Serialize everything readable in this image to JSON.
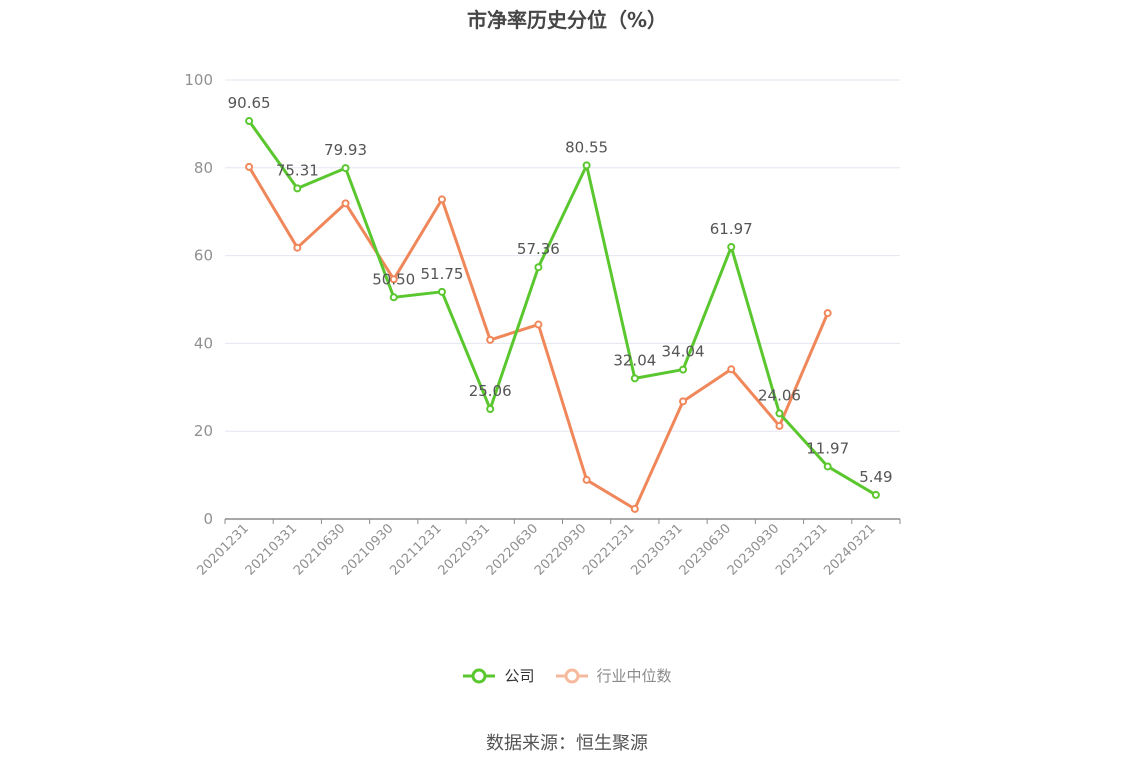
{
  "title": "市净率历史分位（%）",
  "source": "数据来源：恒生聚源",
  "chart_data": {
    "type": "line",
    "title": "市净率历史分位（%）",
    "categories": [
      "20201231",
      "20210331",
      "20210630",
      "20210930",
      "20211231",
      "20220331",
      "20220630",
      "20220930",
      "20221231",
      "20230331",
      "20230630",
      "20230930",
      "20231231",
      "20240321"
    ],
    "ylim": [
      0,
      100
    ],
    "yticks": [
      0,
      20,
      40,
      60,
      80,
      100
    ],
    "grid": true,
    "legend_position": "bottom",
    "series": [
      {
        "name": "公司",
        "color": "#5ac72f",
        "values": [
          90.65,
          75.31,
          79.93,
          50.5,
          51.75,
          25.06,
          57.36,
          80.55,
          32.04,
          34.04,
          61.97,
          24.06,
          11.97,
          5.49
        ],
        "labels": [
          "90.65",
          "75.31",
          "79.93",
          "50.50",
          "51.75",
          "25.06",
          "57.36",
          "80.55",
          "32.04",
          "34.04",
          "61.97",
          "24.06",
          "11.97",
          "5.49"
        ]
      },
      {
        "name": "行业中位数",
        "color": "#f0875a",
        "values": [
          80.2,
          61.8,
          71.9,
          54.6,
          72.8,
          40.8,
          44.3,
          8.9,
          2.3,
          26.8,
          34.1,
          21.2,
          46.9,
          null
        ]
      }
    ]
  }
}
